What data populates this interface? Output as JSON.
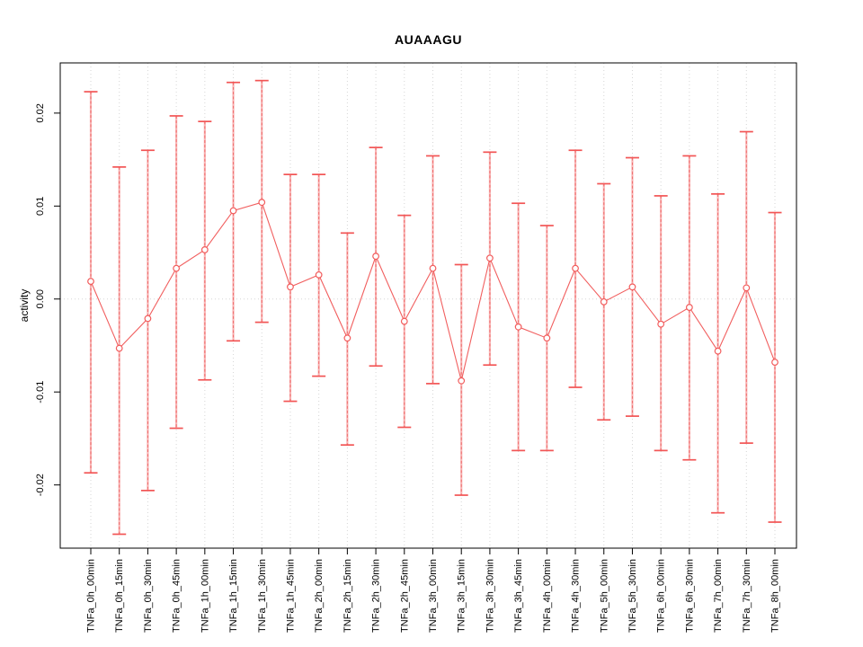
{
  "chart_data": {
    "type": "scatter",
    "subtype": "points-with-error-bars",
    "title": "AUAAAGU",
    "xlabel": "",
    "ylabel": "activity",
    "legend": "none",
    "grid": "vertical dotted gridline per category plus dotted zero line",
    "categories": [
      "TNFa_0h_00min",
      "TNFa_0h_15min",
      "TNFa_0h_30min",
      "TNFa_0h_45min",
      "TNFa_1h_00min",
      "TNFa_1h_15min",
      "TNFa_1h_30min",
      "TNFa_1h_45min",
      "TNFa_2h_00min",
      "TNFa_2h_15min",
      "TNFa_2h_30min",
      "TNFa_2h_45min",
      "TNFa_3h_00min",
      "TNFa_3h_15min",
      "TNFa_3h_30min",
      "TNFa_3h_45min",
      "TNFa_4h_00min",
      "TNFa_4h_30min",
      "TNFa_5h_00min",
      "TNFa_5h_30min",
      "TNFa_6h_00min",
      "TNFa_6h_30min",
      "TNFa_7h_00min",
      "TNFa_7h_30min",
      "TNFa_8h_00min"
    ],
    "series": [
      {
        "name": "activity",
        "values": [
          0.0019,
          -0.0053,
          -0.0021,
          0.0033,
          0.0053,
          0.0095,
          0.0104,
          0.0013,
          0.0026,
          -0.0042,
          0.0046,
          -0.0024,
          0.0033,
          -0.0088,
          0.0044,
          -0.003,
          -0.0042,
          0.0033,
          -0.0003,
          0.0013,
          -0.0027,
          -0.0009,
          -0.0056,
          0.0012,
          -0.0068
        ],
        "upper": [
          0.0223,
          0.0142,
          0.016,
          0.0197,
          0.0191,
          0.0233,
          0.0235,
          0.0134,
          0.0134,
          0.0071,
          0.0163,
          0.009,
          0.0154,
          0.0037,
          0.0158,
          0.0103,
          0.0079,
          0.016,
          0.0124,
          0.0152,
          0.0111,
          0.0154,
          0.0113,
          0.018,
          0.0093
        ],
        "lower": [
          -0.0187,
          -0.0253,
          -0.0206,
          -0.0139,
          -0.0087,
          -0.0045,
          -0.0025,
          -0.011,
          -0.0083,
          -0.0157,
          -0.0072,
          -0.0138,
          -0.0091,
          -0.0211,
          -0.0071,
          -0.0163,
          -0.0163,
          -0.0095,
          -0.013,
          -0.0126,
          -0.0163,
          -0.0173,
          -0.023,
          -0.0155,
          -0.024
        ]
      }
    ],
    "ylim": [
      -0.0268,
      0.0254
    ],
    "yticks": [
      0.02,
      0.01,
      0.0,
      -0.01,
      -0.02
    ],
    "ytick_labels": [
      "0.02",
      "0.01",
      "0.00",
      "-0.01",
      "-0.02"
    ],
    "colors": {
      "point": "#f25c5c",
      "connector_line": "#f15f5f",
      "error_bar_fill": "#f79f9f",
      "error_bar_dash": "#ef6060",
      "error_bar_cap": "#f25555",
      "grid": "#d6d6d6",
      "axis_box": "#000000",
      "text": "#000000",
      "background": "#ffffff"
    }
  }
}
